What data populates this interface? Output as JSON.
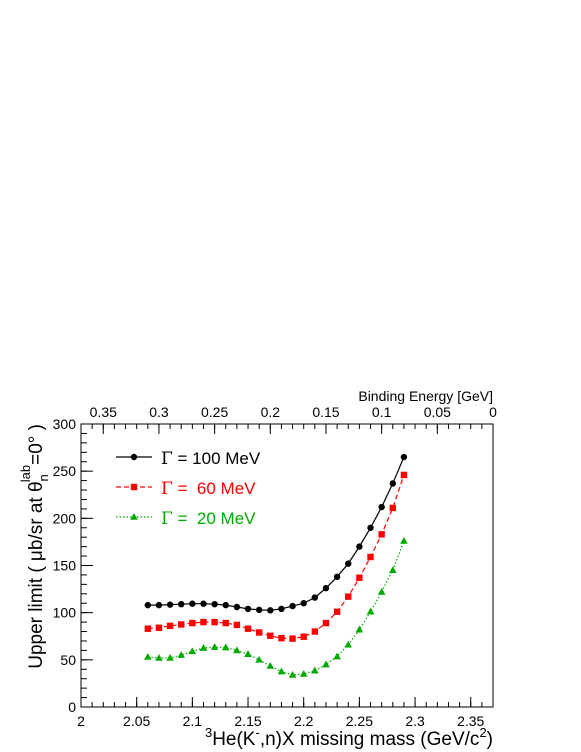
{
  "chart_data": {
    "type": "line",
    "xlabel_parts": {
      "pre": "3",
      "he": "He(K",
      "minus": "-",
      "mid": ",n)X missing mass (GeV/c",
      "sq": "2",
      "post": ")"
    },
    "ylabel_parts": {
      "pre": "Upper limit ( μb/sr at θ",
      "sub": "n",
      "sup": "lab",
      "post": "=0° )"
    },
    "top_axis_label": "Binding Energy [GeV]",
    "xlim": [
      2.0,
      2.37
    ],
    "ylim": [
      0,
      300
    ],
    "x_ticks": [
      2,
      2.05,
      2.1,
      2.15,
      2.2,
      2.25,
      2.3,
      2.35
    ],
    "x_tick_labels": [
      "2",
      "2.05",
      "2.1",
      "2.15",
      "2.2",
      "2.25",
      "2.3",
      "2.35"
    ],
    "y_ticks": [
      0,
      50,
      100,
      150,
      200,
      250,
      300
    ],
    "y_tick_labels": [
      "0",
      "50",
      "100",
      "150",
      "200",
      "250",
      "300"
    ],
    "top_ticks": [
      0.35,
      0.3,
      0.25,
      0.2,
      0.15,
      0.1,
      0.05,
      0
    ],
    "top_tick_labels": [
      "0.35",
      "0.3",
      "0.25",
      "0.2",
      "0.15",
      "0.1",
      "0.05",
      "0"
    ],
    "top_axis_zero_at_mass": 2.37,
    "x": [
      2.06,
      2.07,
      2.08,
      2.09,
      2.1,
      2.11,
      2.12,
      2.13,
      2.14,
      2.15,
      2.16,
      2.17,
      2.18,
      2.19,
      2.2,
      2.21,
      2.22,
      2.23,
      2.24,
      2.25,
      2.26,
      2.27,
      2.28,
      2.29
    ],
    "series": [
      {
        "name_sym": "Γ",
        "name_text": " = 100 MeV",
        "color": "#000000",
        "marker": "circle",
        "dash": "none",
        "values": [
          108,
          108,
          108.5,
          109,
          109.5,
          109.5,
          109,
          108,
          106,
          104,
          103,
          102.5,
          104,
          107,
          110,
          116,
          126,
          138,
          152,
          170,
          190,
          212,
          237,
          265
        ]
      },
      {
        "name_sym": "Γ",
        "name_text": " =  60 MeV",
        "color": "#ff0000",
        "marker": "square",
        "dash": "5,3",
        "values": [
          83,
          84,
          86,
          87.5,
          89,
          90,
          90,
          89,
          87,
          83,
          79,
          75.5,
          73,
          72.5,
          74.5,
          80,
          89,
          101,
          117,
          137,
          159,
          183,
          211,
          246
        ]
      },
      {
        "name_sym": "Γ",
        "name_text": " =  20 MeV",
        "color": "#00aa00",
        "marker": "triangle",
        "dash": "1.5,2",
        "values": [
          53,
          52,
          52,
          55,
          59,
          62.5,
          63.5,
          63,
          60,
          56,
          50,
          43.5,
          37.5,
          34,
          35,
          38.5,
          45,
          53.5,
          66,
          82,
          101,
          122,
          145,
          176
        ]
      }
    ]
  }
}
